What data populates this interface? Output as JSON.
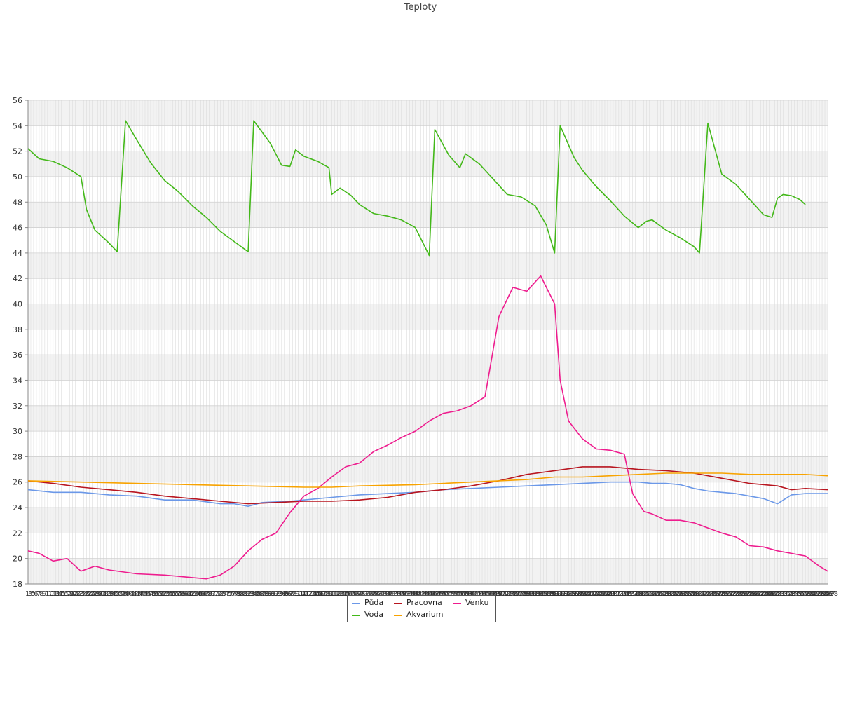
{
  "chart_data": {
    "type": "line",
    "title": "Teploty",
    "xlabel": "",
    "ylabel": "",
    "ylim": [
      18,
      56
    ],
    "yticks": [
      18,
      20,
      22,
      24,
      26,
      28,
      30,
      32,
      34,
      36,
      38,
      40,
      42,
      44,
      46,
      48,
      50,
      52,
      54,
      56
    ],
    "x_count": 288,
    "x_tick_labels_visible": [
      "1",
      "3",
      "5",
      "6",
      "7",
      "8",
      "9",
      "10",
      "11",
      "13",
      "14",
      "15",
      "16",
      "17",
      "18",
      "20",
      "21",
      "22",
      "23",
      "24",
      "25",
      "26",
      "27",
      "28",
      "29",
      "30",
      "31",
      "32",
      "33",
      "34",
      "35",
      "36",
      "37",
      "38",
      "39",
      "40",
      "41",
      "42",
      "43",
      "44",
      "45",
      "46",
      "47",
      "48",
      "49",
      "50",
      "51",
      "52",
      "53",
      "54",
      "55",
      "56",
      "57",
      "58",
      "59",
      "60",
      "61",
      "62",
      "63",
      "64",
      "65",
      "66",
      "67",
      "68",
      "69",
      "70",
      "71",
      "72",
      "73",
      "74",
      "75",
      "76",
      "77",
      "78",
      "79",
      "80",
      "81",
      "82",
      "83",
      "84",
      "85",
      "86",
      "87",
      "88",
      "89",
      "90",
      "91",
      "92",
      "93",
      "94",
      "95",
      "96",
      "97",
      "98",
      "99",
      "100",
      "101",
      "102",
      "103",
      "104",
      "105",
      "106",
      "107",
      "108",
      "109",
      "110",
      "111",
      "112",
      "113",
      "114",
      "115",
      "116",
      "117",
      "118",
      "119",
      "120",
      "121",
      "122",
      "123",
      "124",
      "125",
      "126",
      "127",
      "128",
      "129",
      "130",
      "131",
      "132",
      "133",
      "134",
      "135",
      "136",
      "137",
      "138",
      "139",
      "140",
      "141",
      "142",
      "143",
      "144",
      "145",
      "146",
      "147",
      "148",
      "149",
      "150",
      "151",
      "152",
      "153",
      "154",
      "155",
      "156",
      "157",
      "158",
      "159",
      "160",
      "161",
      "162",
      "163",
      "164",
      "165",
      "166",
      "167",
      "168",
      "169",
      "170",
      "171",
      "172",
      "173",
      "174",
      "175",
      "176",
      "177",
      "178",
      "179",
      "180",
      "181",
      "182",
      "183",
      "184",
      "185",
      "186",
      "187",
      "188",
      "189",
      "190",
      "191",
      "192",
      "193",
      "194",
      "195",
      "196",
      "197",
      "198",
      "199",
      "200",
      "201",
      "202",
      "203",
      "204",
      "205",
      "206",
      "207",
      "208",
      "209",
      "210",
      "211",
      "212",
      "213",
      "214",
      "215",
      "216",
      "217",
      "218",
      "219",
      "220",
      "221",
      "222",
      "223",
      "224",
      "225",
      "226",
      "227",
      "228",
      "229",
      "230",
      "231",
      "232",
      "233",
      "234",
      "235",
      "236",
      "237",
      "238",
      "239",
      "240",
      "241",
      "242",
      "243",
      "244",
      "245",
      "246",
      "247",
      "248",
      "249",
      "250",
      "251",
      "252",
      "253",
      "254",
      "255",
      "256",
      "257",
      "258",
      "259",
      "260",
      "261",
      "262",
      "263",
      "264",
      "265",
      "266",
      "267",
      "268",
      "269",
      "270",
      "271",
      "272",
      "273",
      "274",
      "275",
      "276",
      "277",
      "278",
      "279",
      "280",
      "281",
      "282",
      "283",
      "284",
      "285",
      "286",
      "287",
      "288"
    ],
    "grid": true,
    "legend_position": "bottom",
    "series": [
      {
        "name": "Půda",
        "color": "#6b98e8",
        "points": [
          [
            1,
            25.4
          ],
          [
            10,
            25.2
          ],
          [
            20,
            25.2
          ],
          [
            30,
            25.0
          ],
          [
            40,
            24.9
          ],
          [
            50,
            24.6
          ],
          [
            60,
            24.6
          ],
          [
            70,
            24.3
          ],
          [
            75,
            24.3
          ],
          [
            80,
            24.1
          ],
          [
            85,
            24.4
          ],
          [
            95,
            24.5
          ],
          [
            100,
            24.6
          ],
          [
            110,
            24.8
          ],
          [
            120,
            25.0
          ],
          [
            130,
            25.1
          ],
          [
            140,
            25.2
          ],
          [
            150,
            25.4
          ],
          [
            160,
            25.5
          ],
          [
            170,
            25.6
          ],
          [
            180,
            25.7
          ],
          [
            190,
            25.8
          ],
          [
            200,
            25.9
          ],
          [
            210,
            26.0
          ],
          [
            215,
            26.0
          ],
          [
            220,
            26.0
          ],
          [
            225,
            25.9
          ],
          [
            230,
            25.9
          ],
          [
            235,
            25.8
          ],
          [
            240,
            25.5
          ],
          [
            245,
            25.3
          ],
          [
            250,
            25.2
          ],
          [
            255,
            25.1
          ],
          [
            260,
            24.9
          ],
          [
            265,
            24.7
          ],
          [
            270,
            24.3
          ],
          [
            275,
            25.0
          ],
          [
            280,
            25.1
          ],
          [
            288,
            25.1
          ]
        ]
      },
      {
        "name": "Pracovna",
        "color": "#b8151f",
        "points": [
          [
            1,
            26.1
          ],
          [
            10,
            25.9
          ],
          [
            20,
            25.6
          ],
          [
            30,
            25.4
          ],
          [
            40,
            25.2
          ],
          [
            50,
            24.9
          ],
          [
            60,
            24.7
          ],
          [
            70,
            24.5
          ],
          [
            80,
            24.3
          ],
          [
            90,
            24.4
          ],
          [
            100,
            24.5
          ],
          [
            110,
            24.5
          ],
          [
            120,
            24.6
          ],
          [
            130,
            24.8
          ],
          [
            140,
            25.2
          ],
          [
            150,
            25.4
          ],
          [
            160,
            25.7
          ],
          [
            170,
            26.1
          ],
          [
            180,
            26.6
          ],
          [
            190,
            26.9
          ],
          [
            200,
            27.2
          ],
          [
            210,
            27.2
          ],
          [
            220,
            27.0
          ],
          [
            230,
            26.9
          ],
          [
            240,
            26.7
          ],
          [
            250,
            26.3
          ],
          [
            260,
            25.9
          ],
          [
            270,
            25.7
          ],
          [
            275,
            25.4
          ],
          [
            280,
            25.5
          ],
          [
            288,
            25.4
          ]
        ]
      },
      {
        "name": "Venku",
        "color": "#ee1c8e",
        "points": [
          [
            1,
            20.6
          ],
          [
            5,
            20.4
          ],
          [
            10,
            19.8
          ],
          [
            15,
            20.0
          ],
          [
            20,
            19.0
          ],
          [
            25,
            19.4
          ],
          [
            30,
            19.1
          ],
          [
            40,
            18.8
          ],
          [
            50,
            18.7
          ],
          [
            60,
            18.5
          ],
          [
            65,
            18.4
          ],
          [
            70,
            18.7
          ],
          [
            75,
            19.4
          ],
          [
            80,
            20.6
          ],
          [
            85,
            21.5
          ],
          [
            90,
            22.0
          ],
          [
            95,
            23.6
          ],
          [
            100,
            24.9
          ],
          [
            105,
            25.5
          ],
          [
            110,
            26.4
          ],
          [
            115,
            27.2
          ],
          [
            120,
            27.5
          ],
          [
            125,
            28.4
          ],
          [
            130,
            28.9
          ],
          [
            135,
            29.5
          ],
          [
            140,
            30.0
          ],
          [
            145,
            30.8
          ],
          [
            150,
            31.4
          ],
          [
            155,
            31.6
          ],
          [
            160,
            32.0
          ],
          [
            165,
            32.7
          ],
          [
            170,
            39.0
          ],
          [
            175,
            41.3
          ],
          [
            180,
            41.0
          ],
          [
            185,
            42.2
          ],
          [
            190,
            40.0
          ],
          [
            192,
            34.0
          ],
          [
            195,
            30.8
          ],
          [
            200,
            29.4
          ],
          [
            205,
            28.6
          ],
          [
            210,
            28.5
          ],
          [
            215,
            28.2
          ],
          [
            218,
            25.1
          ],
          [
            222,
            23.7
          ],
          [
            225,
            23.5
          ],
          [
            230,
            23.0
          ],
          [
            235,
            23.0
          ],
          [
            240,
            22.8
          ],
          [
            245,
            22.4
          ],
          [
            250,
            22.0
          ],
          [
            255,
            21.7
          ],
          [
            260,
            21.0
          ],
          [
            265,
            20.9
          ],
          [
            270,
            20.6
          ],
          [
            275,
            20.4
          ],
          [
            280,
            20.2
          ],
          [
            285,
            19.4
          ],
          [
            288,
            19.0
          ]
        ]
      },
      {
        "name": "Voda",
        "color": "#43b819",
        "points": [
          [
            1,
            52.2
          ],
          [
            5,
            51.4
          ],
          [
            10,
            51.2
          ],
          [
            15,
            50.7
          ],
          [
            20,
            50.0
          ],
          [
            22,
            47.4
          ],
          [
            25,
            45.8
          ],
          [
            30,
            44.8
          ],
          [
            33,
            44.1
          ],
          [
            36,
            54.4
          ],
          [
            40,
            52.9
          ],
          [
            45,
            51.1
          ],
          [
            50,
            49.7
          ],
          [
            55,
            48.8
          ],
          [
            60,
            47.7
          ],
          [
            65,
            46.8
          ],
          [
            70,
            45.7
          ],
          [
            75,
            44.9
          ],
          [
            80,
            44.1
          ],
          [
            82,
            54.4
          ],
          [
            88,
            52.6
          ],
          [
            92,
            50.9
          ],
          [
            95,
            50.8
          ],
          [
            97,
            52.1
          ],
          [
            100,
            51.6
          ],
          [
            105,
            51.2
          ],
          [
            109,
            50.7
          ],
          [
            110,
            48.6
          ],
          [
            113,
            49.1
          ],
          [
            117,
            48.5
          ],
          [
            120,
            47.8
          ],
          [
            125,
            47.1
          ],
          [
            130,
            46.9
          ],
          [
            135,
            46.6
          ],
          [
            140,
            46.0
          ],
          [
            145,
            43.8
          ],
          [
            147,
            53.7
          ],
          [
            152,
            51.7
          ],
          [
            156,
            50.7
          ],
          [
            158,
            51.8
          ],
          [
            163,
            51.0
          ],
          [
            168,
            49.8
          ],
          [
            173,
            48.6
          ],
          [
            178,
            48.4
          ],
          [
            183,
            47.7
          ],
          [
            187,
            46.2
          ],
          [
            190,
            44.0
          ],
          [
            192,
            54.0
          ],
          [
            197,
            51.5
          ],
          [
            200,
            50.5
          ],
          [
            205,
            49.2
          ],
          [
            210,
            48.1
          ],
          [
            215,
            46.9
          ],
          [
            220,
            46.0
          ],
          [
            223,
            46.5
          ],
          [
            225,
            46.6
          ],
          [
            230,
            45.8
          ],
          [
            235,
            45.2
          ],
          [
            240,
            44.5
          ],
          [
            242,
            44.0
          ],
          [
            245,
            54.2
          ],
          [
            250,
            50.2
          ],
          [
            255,
            49.4
          ],
          [
            260,
            48.2
          ],
          [
            265,
            47.0
          ],
          [
            268,
            46.8
          ],
          [
            270,
            48.3
          ],
          [
            272,
            48.6
          ],
          [
            275,
            48.5
          ],
          [
            278,
            48.2
          ],
          [
            280,
            47.8
          ]
        ]
      },
      {
        "name": "Akvarium",
        "color": "#f8a300",
        "points": [
          [
            1,
            26.1
          ],
          [
            20,
            26.0
          ],
          [
            40,
            25.9
          ],
          [
            60,
            25.8
          ],
          [
            80,
            25.7
          ],
          [
            100,
            25.6
          ],
          [
            110,
            25.6
          ],
          [
            120,
            25.7
          ],
          [
            140,
            25.8
          ],
          [
            160,
            26.0
          ],
          [
            170,
            26.1
          ],
          [
            180,
            26.2
          ],
          [
            190,
            26.4
          ],
          [
            200,
            26.4
          ],
          [
            210,
            26.5
          ],
          [
            220,
            26.6
          ],
          [
            230,
            26.7
          ],
          [
            240,
            26.7
          ],
          [
            250,
            26.7
          ],
          [
            260,
            26.6
          ],
          [
            270,
            26.6
          ],
          [
            280,
            26.6
          ],
          [
            288,
            26.5
          ]
        ]
      }
    ]
  }
}
